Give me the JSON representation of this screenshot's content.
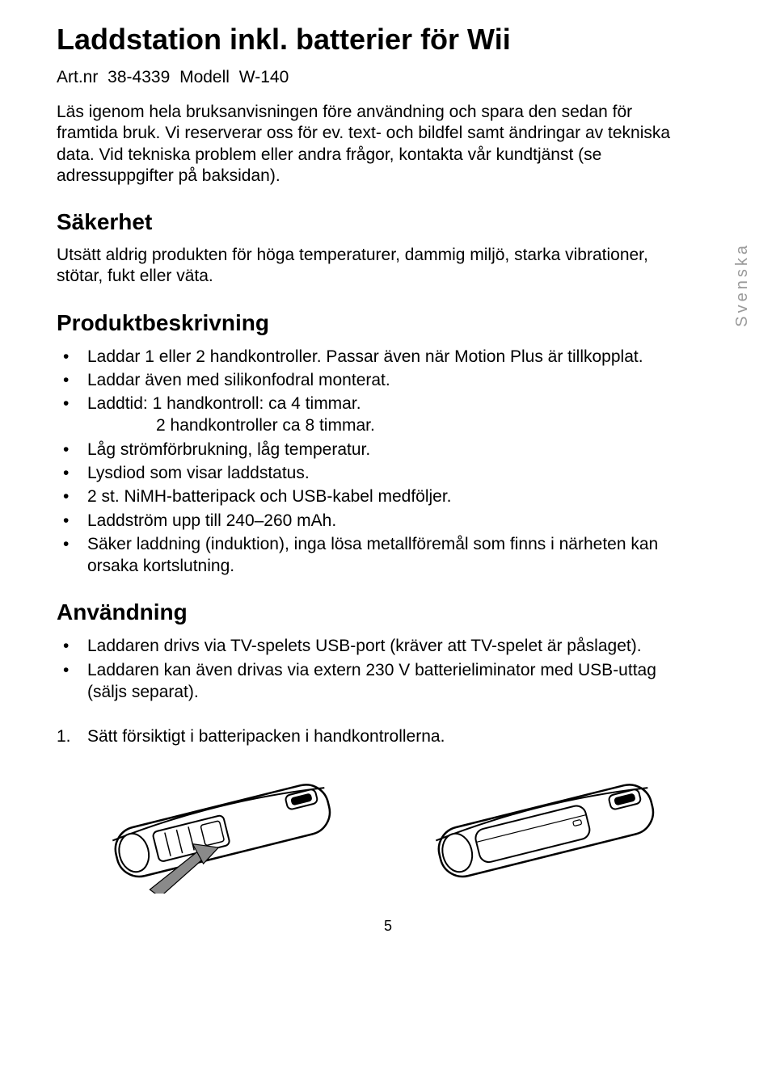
{
  "colors": {
    "text": "#000000",
    "background": "#ffffff",
    "side_label": "#9a9a9a",
    "figure_stroke": "#000000",
    "figure_fill": "#ffffff",
    "figure_shade": "#cfcfcf",
    "arrow_fill": "#8a8a8a"
  },
  "title": "Laddstation inkl. batterier för Wii",
  "subtitle": "Art.nr 38-4339  Modell  W-140",
  "intro": "Läs igenom hela bruksanvisningen före användning och spara den sedan för framtida bruk. Vi reserverar oss för ev. text- och bildfel samt ändringar av tekniska data. Vid tekniska problem eller andra frågor, kontakta vår kundtjänst (se adressuppgifter på baksidan).",
  "side_label": "Svenska",
  "sections": {
    "safety": {
      "heading": "Säkerhet",
      "body": "Utsätt aldrig produkten för höga temperaturer, dammig miljö, starka vibrationer, stötar, fukt eller väta."
    },
    "description": {
      "heading": "Produktbeskrivning",
      "bullets": [
        {
          "text": "Laddar 1 eller 2 handkontroller. Passar även när Motion Plus är tillkopplat."
        },
        {
          "text": "Laddar även med silikonfodral monterat."
        },
        {
          "text": "Laddtid:  1 handkontroll: ca 4 timmar.",
          "sub": "2 handkontroller ca 8 timmar."
        },
        {
          "text": "Låg strömförbrukning, låg temperatur."
        },
        {
          "text": "Lysdiod som visar laddstatus."
        },
        {
          "text": "2 st. NiMH-batteripack och USB-kabel medföljer."
        },
        {
          "text": "Laddström upp till 240–260 mAh."
        },
        {
          "text": "Säker laddning (induktion), inga lösa metallföremål som finns i närheten kan orsaka kortslutning."
        }
      ]
    },
    "usage": {
      "heading": "Användning",
      "bullets": [
        {
          "text": "Laddaren drivs via TV-spelets USB-port (kräver att TV-spelet är påslaget)."
        },
        {
          "text": "Laddaren kan även drivas via extern 230 V batterieliminator med USB-uttag (säljs separat)."
        }
      ],
      "steps": [
        {
          "num": "1.",
          "text": "Sätt försiktigt i batteripacken i handkontrollerna."
        }
      ]
    }
  },
  "page_number": "5"
}
